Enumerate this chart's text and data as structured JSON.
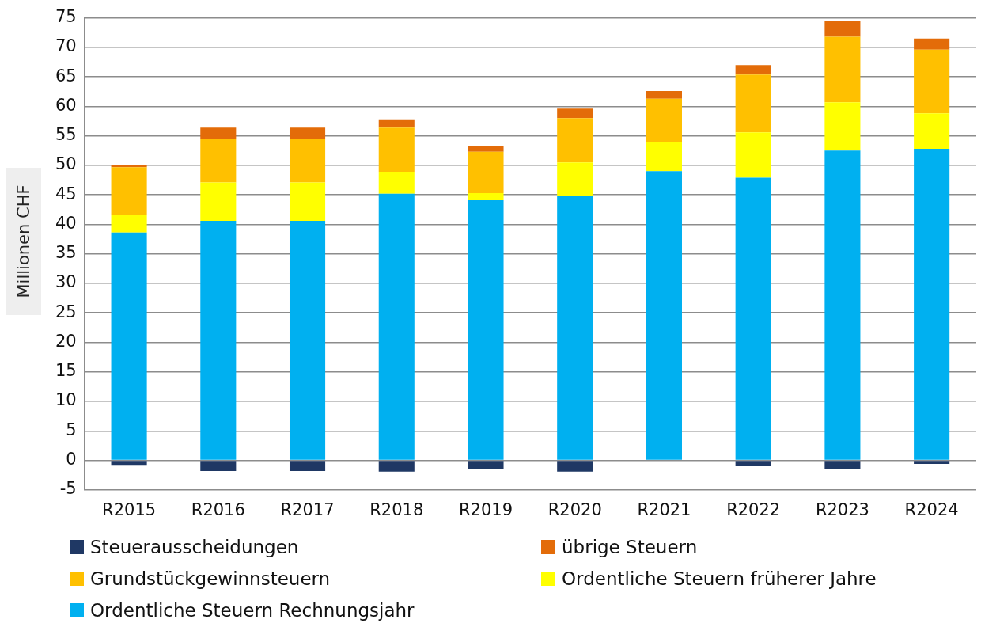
{
  "chart_data": {
    "type": "bar",
    "stacked": true,
    "ylabel": "Millionen CHF",
    "categories": [
      "R2015",
      "R2016",
      "R2017",
      "R2018",
      "R2019",
      "R2020",
      "R2021",
      "R2022",
      "R2023",
      "R2024"
    ],
    "series": [
      {
        "name": "Steuerausscheidungen",
        "color": "#1f3864",
        "values": [
          -0.9,
          -1.8,
          -1.8,
          -1.9,
          -1.4,
          -1.9,
          -0.1,
          -1.0,
          -1.5,
          -0.6
        ]
      },
      {
        "name": "Ordentliche Steuern Rechnungsjahr",
        "color": "#00b0f0",
        "values": [
          38.6,
          40.6,
          40.6,
          45.2,
          44.1,
          44.9,
          49.0,
          47.9,
          52.5,
          52.8
        ]
      },
      {
        "name": "Ordentliche Steuern früherer Jahre",
        "color": "#ffff00",
        "values": [
          3.0,
          6.5,
          6.5,
          3.7,
          1.2,
          5.6,
          4.9,
          7.7,
          8.2,
          6.0
        ]
      },
      {
        "name": "Grundstückgewinnsteuern",
        "color": "#ffc000",
        "values": [
          8.1,
          7.3,
          7.3,
          7.5,
          7.0,
          7.5,
          7.4,
          9.8,
          11.1,
          10.8
        ]
      },
      {
        "name": "übrige Steuern",
        "color": "#e36c09",
        "values": [
          0.4,
          2.0,
          2.0,
          1.4,
          1.0,
          1.6,
          1.3,
          1.6,
          2.7,
          1.9
        ]
      }
    ],
    "ylim": [
      -5,
      75
    ],
    "yticks": [
      -5,
      0,
      5,
      10,
      15,
      20,
      25,
      30,
      35,
      40,
      45,
      50,
      55,
      60,
      65,
      70,
      75
    ],
    "grid": "y",
    "legend": "bottom"
  }
}
